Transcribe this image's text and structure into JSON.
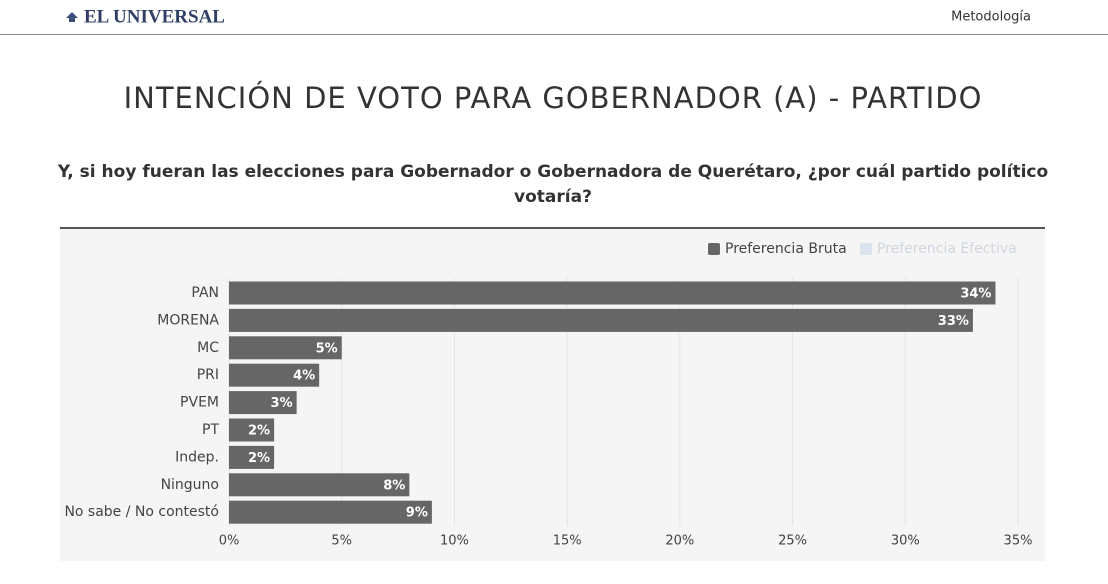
{
  "header": {
    "logo": "EL UNIVERSAL",
    "link": "Metodología"
  },
  "chart_data": {
    "type": "bar",
    "orientation": "horizontal",
    "title": "INTENCIÓN DE VOTO PARA GOBERNADOR (A) - PARTIDO",
    "subtitle": "Y, si hoy fueran las elecciones para Gobernador o Gobernadora de Querétaro, ¿por cuál partido político votaría?",
    "categories": [
      "PAN",
      "MORENA",
      "MC",
      "PRI",
      "PVEM",
      "PT",
      "Indep.",
      "Ninguno",
      "No sabe / No contestó"
    ],
    "series": [
      {
        "name": "Preferencia Bruta",
        "color": "#666666",
        "values": [
          34,
          33,
          5,
          4,
          3,
          2,
          2,
          8,
          9
        ],
        "value_labels": [
          "34%",
          "33%",
          "5%",
          "4%",
          "3%",
          "2%",
          "2%",
          "8%",
          "9%"
        ]
      },
      {
        "name": "Preferencia Efectiva",
        "color": "#dbe3ee",
        "hidden": true
      }
    ],
    "xlim": [
      0,
      35
    ],
    "xticks": [
      {
        "value": 0,
        "label": "0%"
      },
      {
        "value": 5,
        "label": "5%"
      },
      {
        "value": 10,
        "label": "10%"
      },
      {
        "value": 15,
        "label": "15%"
      },
      {
        "value": 20,
        "label": "20%"
      },
      {
        "value": 25,
        "label": "25%"
      },
      {
        "value": 30,
        "label": "30%"
      },
      {
        "value": 35,
        "label": "35%"
      }
    ],
    "grid": true,
    "legend": "top-right"
  }
}
